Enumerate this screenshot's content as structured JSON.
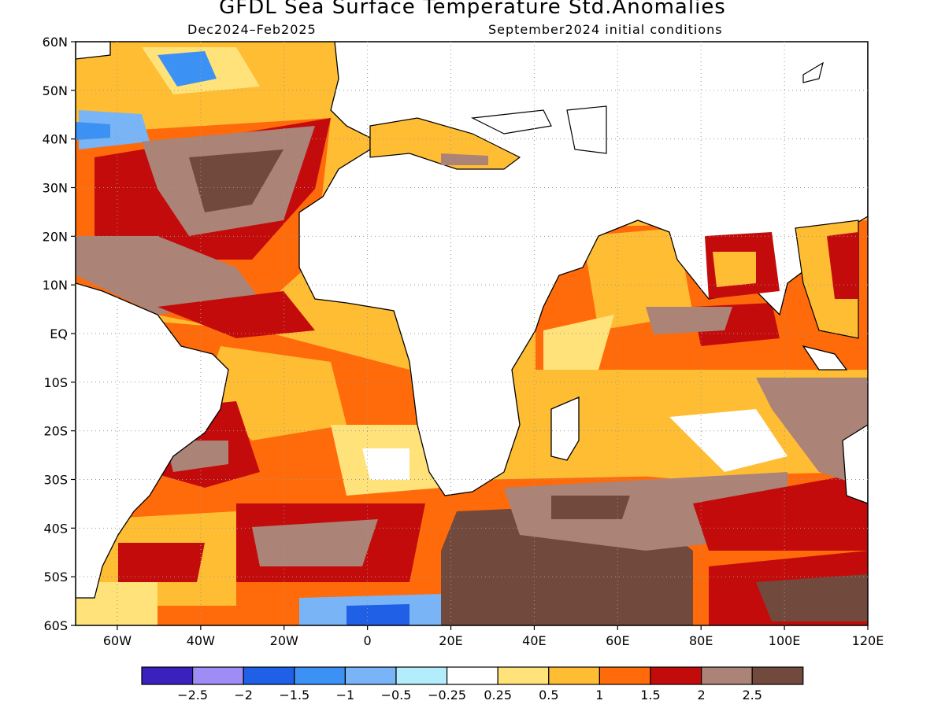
{
  "title": "GFDL Sea Surface Temperature Std.Anomalies",
  "subtitle_left": "Dec2024–Feb2025",
  "subtitle_right": "September2024 initial conditions",
  "lat_labels": [
    "60N",
    "50N",
    "40N",
    "30N",
    "20N",
    "10N",
    "EQ",
    "10S",
    "20S",
    "30S",
    "40S",
    "50S",
    "60S"
  ],
  "lon_labels": [
    "60W",
    "40W",
    "20W",
    "0",
    "20E",
    "40E",
    "60E",
    "80E",
    "100E",
    "120E"
  ],
  "colorbar": {
    "colors": [
      "#3a21bd",
      "#9f8cf5",
      "#1f60e6",
      "#3c91f5",
      "#79b4f7",
      "#b3ecfb",
      "#ffffff",
      "#ffe27a",
      "#ffbd34",
      "#ff6b0a",
      "#c40b0b",
      "#ab8377",
      "#72493d"
    ],
    "labels": [
      "−2.5",
      "−2",
      "−1.5",
      "−1",
      "−0.5",
      "−0.25",
      "0.25",
      "0.5",
      "1",
      "1.5",
      "2",
      "2.5"
    ]
  },
  "grid": "dotted"
}
